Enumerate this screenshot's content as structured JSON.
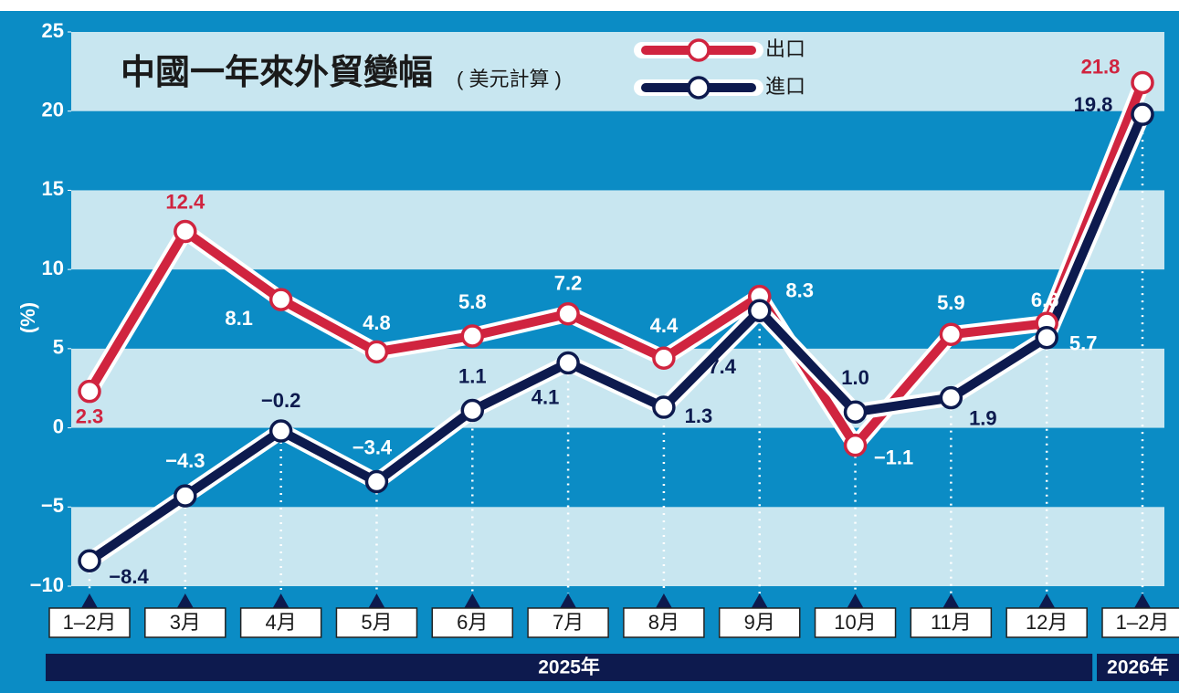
{
  "chart_data": {
    "type": "line",
    "title": "中國一年來外貿變幅",
    "subtitle": "( 美元計算 )",
    "y_label": "(%)",
    "categories": [
      "1–2月",
      "3月",
      "4月",
      "5月",
      "6月",
      "7月",
      "8月",
      "9月",
      "10月",
      "11月",
      "12月",
      "1–2月"
    ],
    "x_groups": [
      "2025年",
      "2026年"
    ],
    "series": [
      {
        "name": "出口",
        "color": "#d0243f",
        "values": [
          2.3,
          12.4,
          8.1,
          4.8,
          5.8,
          7.2,
          4.4,
          8.3,
          -1.1,
          5.9,
          6.6,
          21.8
        ],
        "value_labels": [
          "2.3",
          "12.4",
          "8.1",
          "4.8",
          "5.8",
          "7.2",
          "4.4",
          "8.3",
          "−1.1",
          "5.9",
          "6.6",
          "21.8"
        ]
      },
      {
        "name": "進口",
        "color": "#0d1a4e",
        "values": [
          -8.4,
          -4.3,
          -0.2,
          -3.4,
          1.1,
          4.1,
          1.3,
          7.4,
          1.0,
          1.9,
          5.7,
          19.8
        ],
        "value_labels": [
          "−8.4",
          "−4.3",
          "−0.2",
          "−3.4",
          "1.1",
          "4.1",
          "1.3",
          "7.4",
          "1.0",
          "1.9",
          "5.7",
          "19.8"
        ]
      }
    ],
    "ylim": [
      -10,
      25
    ],
    "yticks": [
      {
        "value": -10,
        "label": "−10"
      },
      {
        "value": -5,
        "label": "−5"
      },
      0,
      5,
      10,
      15,
      20,
      25
    ],
    "band_color": "#c8e6f0",
    "background": "#0b8cc5"
  }
}
